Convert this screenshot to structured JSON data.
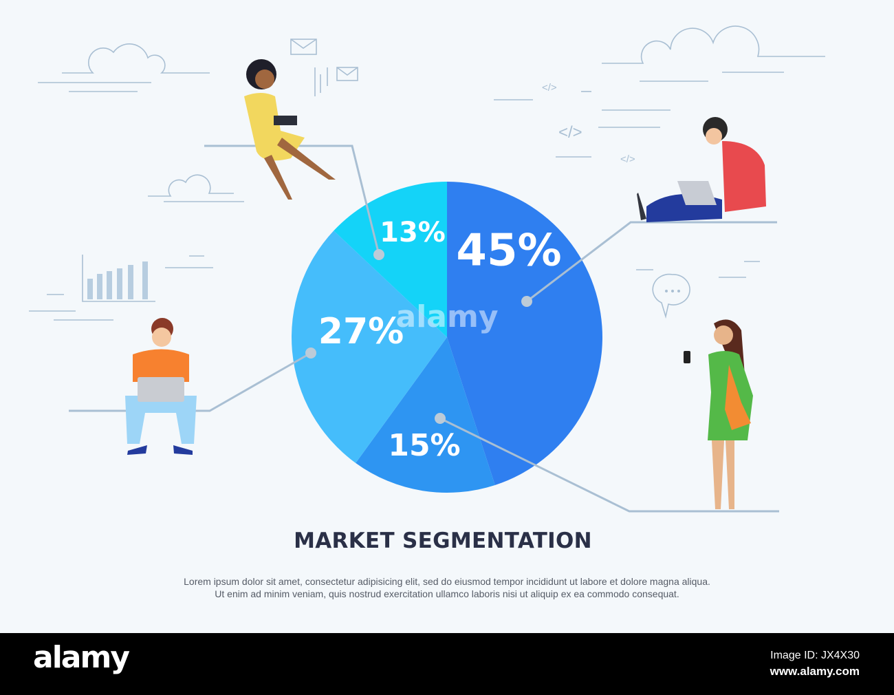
{
  "chart_data": {
    "type": "pie",
    "title": "MARKET SEGMENTATION",
    "start": "12 o'clock, clockwise",
    "slices": [
      {
        "label": "45%",
        "value": 45,
        "color": "#2f7ff0"
      },
      {
        "label": "15%",
        "value": 15,
        "color": "#2e95f2"
      },
      {
        "label": "27%",
        "value": 27,
        "color": "#45bdfb"
      },
      {
        "label": "13%",
        "value": 13,
        "color": "#14d3f8"
      }
    ]
  },
  "description": [
    "Lorem ipsum dolor sit amet, consectetur adipisicing elit, sed do eiusmod tempor incididunt ut labore et dolore magna aliqua.",
    "Ut enim ad minim veniam, quis nostrud exercitation ullamco laboris nisi ut aliquip ex ea commodo consequat."
  ],
  "footer": {
    "logo": "alamy",
    "image_id": "Image ID: JX4X30",
    "site": "www.alamy.com"
  },
  "watermark": "alamy",
  "colors": {
    "background": "#f4f8fb",
    "line": "#a9bfd3",
    "title": "#2a3047"
  }
}
